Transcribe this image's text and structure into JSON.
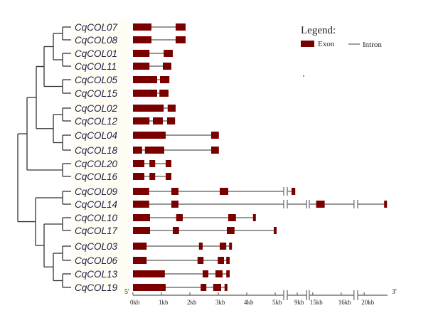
{
  "legend": {
    "title": "Legend:",
    "exon_label": "Exon",
    "intron_label": "Intron"
  },
  "colors": {
    "exon": "#7a0000",
    "intron": "#777777",
    "label": "#1c1f45"
  },
  "axis": {
    "five_prime": "5'",
    "three_prime": "3'",
    "segments_kb": [
      [
        0,
        5.3
      ],
      [
        8.65,
        9.33
      ],
      [
        14.88,
        16.45
      ],
      [
        19.77,
        20.82
      ]
    ],
    "ticks": [
      {
        "kb": 0,
        "label": "0kb"
      },
      {
        "kb": 1,
        "label": "1kb"
      },
      {
        "kb": 2,
        "label": "2kb"
      },
      {
        "kb": 3,
        "label": "3kb"
      },
      {
        "kb": 4,
        "label": "4kb"
      },
      {
        "kb": 5,
        "label": "5kb"
      },
      {
        "kb": 9,
        "label": "9kb"
      },
      {
        "kb": 15,
        "label": "15kb"
      },
      {
        "kb": 16,
        "label": "16kb"
      },
      {
        "kb": 20,
        "label": "20kb"
      }
    ]
  },
  "genes": [
    {
      "name": "CqCOL07",
      "end": 1.85,
      "exons": [
        [
          0,
          0.65
        ],
        [
          1.5,
          1.85
        ]
      ]
    },
    {
      "name": "CqCOL08",
      "end": 1.85,
      "exons": [
        [
          0,
          0.65
        ],
        [
          1.5,
          1.85
        ]
      ]
    },
    {
      "name": "CqCOL01",
      "end": 1.4,
      "exons": [
        [
          0,
          0.58
        ],
        [
          1.08,
          1.4
        ]
      ]
    },
    {
      "name": "CqCOL11",
      "end": 1.35,
      "exons": [
        [
          0,
          0.58
        ],
        [
          1.05,
          1.35
        ]
      ]
    },
    {
      "name": "CqCOL05",
      "end": 1.28,
      "exons": [
        [
          0,
          0.85
        ],
        [
          0.95,
          1.28
        ]
      ]
    },
    {
      "name": "CqCOL15",
      "end": 1.25,
      "exons": [
        [
          0,
          0.85
        ],
        [
          0.93,
          1.25
        ]
      ]
    },
    {
      "name": "CqCOL02",
      "end": 1.5,
      "exons": [
        [
          0,
          1.08
        ],
        [
          1.22,
          1.5
        ]
      ]
    },
    {
      "name": "CqCOL12",
      "end": 1.48,
      "exons": [
        [
          0,
          0.58
        ],
        [
          0.7,
          1.05
        ],
        [
          1.2,
          1.48
        ]
      ]
    },
    {
      "name": "CqCOL04",
      "end": 3.02,
      "exons": [
        [
          0,
          1.15
        ],
        [
          2.75,
          3.02
        ]
      ]
    },
    {
      "name": "CqCOL18",
      "end": 3.02,
      "exons": [
        [
          0,
          0.32
        ],
        [
          0.42,
          1.1
        ],
        [
          2.75,
          3.02
        ]
      ]
    },
    {
      "name": "CqCOL20",
      "end": 1.35,
      "exons": [
        [
          0,
          0.4
        ],
        [
          0.58,
          0.78
        ],
        [
          1.15,
          1.35
        ]
      ]
    },
    {
      "name": "CqCOL16",
      "end": 1.35,
      "exons": [
        [
          0,
          0.4
        ],
        [
          0.58,
          0.78
        ],
        [
          1.15,
          1.35
        ]
      ]
    },
    {
      "name": "CqCOL09",
      "end": 8.93,
      "exons": [
        [
          0,
          0.57
        ],
        [
          1.35,
          1.6
        ],
        [
          3.05,
          3.35
        ],
        [
          8.8,
          8.93
        ]
      ]
    },
    {
      "name": "CqCOL14",
      "end": 20.8,
      "exons": [
        [
          0,
          0.57
        ],
        [
          1.35,
          1.6
        ],
        [
          15.12,
          15.42
        ],
        [
          20.7,
          20.8
        ]
      ]
    },
    {
      "name": "CqCOL10",
      "end": 4.32,
      "exons": [
        [
          0,
          0.6
        ],
        [
          1.52,
          1.75
        ],
        [
          3.35,
          3.62
        ],
        [
          4.22,
          4.32
        ]
      ]
    },
    {
      "name": "CqCOL17",
      "end": 5.05,
      "exons": [
        [
          0,
          0.6
        ],
        [
          1.4,
          1.62
        ],
        [
          3.3,
          3.57
        ],
        [
          4.95,
          5.05
        ]
      ]
    },
    {
      "name": "CqCOL03",
      "end": 3.48,
      "exons": [
        [
          0,
          0.48
        ],
        [
          2.32,
          2.45
        ],
        [
          3.05,
          3.28
        ],
        [
          3.38,
          3.48
        ]
      ]
    },
    {
      "name": "CqCOL06",
      "end": 3.4,
      "exons": [
        [
          0,
          0.48
        ],
        [
          2.27,
          2.48
        ],
        [
          2.98,
          3.2
        ],
        [
          3.28,
          3.4
        ]
      ]
    },
    {
      "name": "CqCOL13",
      "end": 3.4,
      "exons": [
        [
          0,
          1.12
        ],
        [
          2.45,
          2.65
        ],
        [
          2.9,
          3.15
        ],
        [
          3.28,
          3.4
        ]
      ]
    },
    {
      "name": "CqCOL19",
      "end": 3.32,
      "exons": [
        [
          0,
          1.15
        ],
        [
          2.38,
          2.58
        ],
        [
          2.82,
          3.1
        ],
        [
          3.22,
          3.32
        ]
      ]
    }
  ]
}
